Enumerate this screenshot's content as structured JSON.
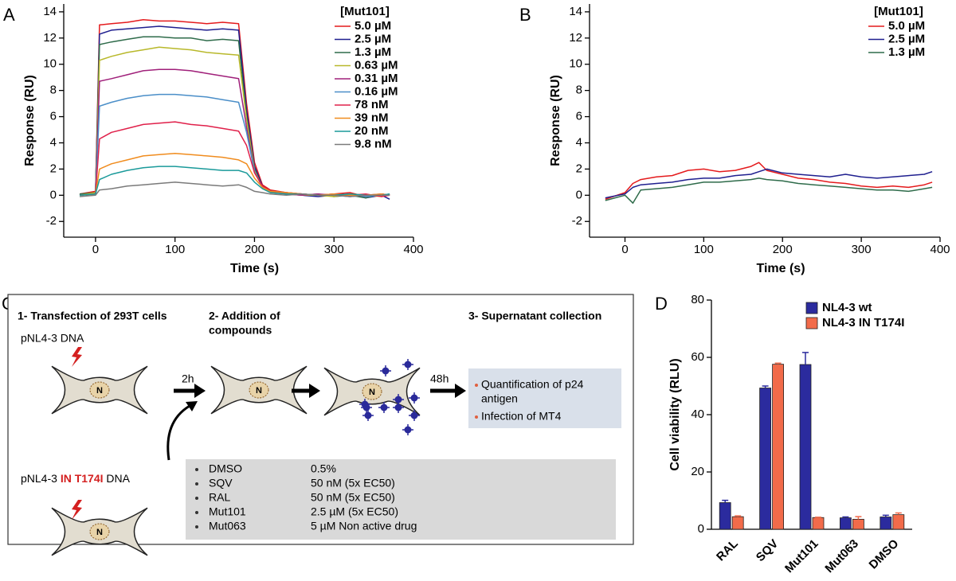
{
  "panel_labels": [
    "A",
    "B",
    "C",
    "D"
  ],
  "chart_data": [
    {
      "type": "line",
      "xlabel": "Time (s)",
      "ylabel": "Response (RU)",
      "legend_title": "[Mut101]",
      "xlim": [
        -40,
        400
      ],
      "xticks": [
        0,
        100,
        200,
        300,
        400
      ],
      "ylim": [
        -3.2,
        14.6
      ],
      "yticks": [
        -2,
        0,
        2,
        4,
        6,
        8,
        10,
        12,
        14
      ],
      "x": [
        -20,
        0,
        5,
        20,
        40,
        60,
        80,
        100,
        120,
        140,
        160,
        180,
        190,
        200,
        210,
        220,
        240,
        260,
        280,
        300,
        320,
        340,
        360,
        370
      ],
      "series": [
        {
          "name": "5.0 µM",
          "color": "#e41a1c",
          "values": [
            0.1,
            0.3,
            13.0,
            13.1,
            13.2,
            13.4,
            13.3,
            13.3,
            13.2,
            13.1,
            13.2,
            13.1,
            7.0,
            2.5,
            0.8,
            0.4,
            0.2,
            0.1,
            0.0,
            0.1,
            0.2,
            -0.1,
            0.1,
            0.0
          ]
        },
        {
          "name": "2.5 µM",
          "color": "#1f1f8f",
          "values": [
            0.0,
            0.2,
            12.3,
            12.6,
            12.7,
            12.8,
            12.9,
            12.8,
            12.7,
            12.6,
            12.7,
            12.6,
            6.5,
            2.2,
            0.7,
            0.3,
            0.1,
            0.0,
            -0.1,
            0.0,
            0.1,
            -0.2,
            0.0,
            -0.3
          ]
        },
        {
          "name": "1.3 µM",
          "color": "#2e6b4a",
          "values": [
            0.1,
            0.2,
            11.5,
            11.7,
            11.9,
            12.1,
            12.1,
            12.0,
            12.0,
            11.8,
            11.9,
            11.8,
            6.0,
            2.0,
            0.6,
            0.3,
            0.2,
            0.0,
            0.1,
            -0.1,
            0.0,
            -0.2,
            0.1,
            0.0
          ]
        },
        {
          "name": "0.63 µM",
          "color": "#b8b82a",
          "values": [
            0.0,
            0.2,
            10.3,
            10.6,
            10.9,
            11.1,
            11.3,
            11.2,
            11.1,
            10.9,
            10.8,
            10.7,
            5.8,
            1.9,
            0.6,
            0.2,
            0.1,
            0.0,
            0.0,
            -0.1,
            0.1,
            0.0,
            -0.1,
            0.1
          ]
        },
        {
          "name": "0.31 µM",
          "color": "#a0207a",
          "values": [
            0.0,
            0.1,
            8.7,
            8.9,
            9.2,
            9.5,
            9.6,
            9.6,
            9.5,
            9.3,
            9.1,
            8.9,
            5.2,
            1.8,
            0.6,
            0.3,
            0.1,
            0.0,
            0.1,
            0.0,
            -0.1,
            0.0,
            0.1,
            0.0
          ]
        },
        {
          "name": "0.16 µM",
          "color": "#4a8ec8",
          "values": [
            0.0,
            0.1,
            6.8,
            7.1,
            7.4,
            7.6,
            7.7,
            7.7,
            7.6,
            7.5,
            7.3,
            7.1,
            4.8,
            1.8,
            0.6,
            0.3,
            0.2,
            0.1,
            0.0,
            0.0,
            0.1,
            -0.1,
            0.0,
            0.1
          ]
        },
        {
          "name": "78 nM",
          "color": "#e0204a",
          "values": [
            0.0,
            0.1,
            4.3,
            4.8,
            5.1,
            5.4,
            5.5,
            5.6,
            5.4,
            5.3,
            5.1,
            4.9,
            3.8,
            1.7,
            0.7,
            0.3,
            0.2,
            0.1,
            0.0,
            0.1,
            0.0,
            0.1,
            -0.1,
            0.0
          ]
        },
        {
          "name": "39 nM",
          "color": "#f08c1e",
          "values": [
            0.0,
            0.1,
            2.0,
            2.4,
            2.7,
            3.0,
            3.1,
            3.2,
            3.1,
            3.0,
            2.9,
            2.7,
            2.4,
            1.3,
            0.6,
            0.3,
            0.2,
            0.1,
            0.0,
            0.1,
            0.0,
            0.0,
            0.1,
            0.0
          ]
        },
        {
          "name": "20 nM",
          "color": "#1a9a9a",
          "values": [
            0.0,
            0.1,
            1.2,
            1.6,
            1.9,
            2.1,
            2.2,
            2.2,
            2.1,
            2.0,
            1.9,
            1.9,
            1.7,
            1.0,
            0.5,
            0.2,
            0.1,
            0.1,
            0.0,
            0.0,
            0.1,
            0.0,
            0.0,
            0.1
          ]
        },
        {
          "name": "9.8 nM",
          "color": "#7a7a7a",
          "values": [
            -0.1,
            0.0,
            0.4,
            0.5,
            0.7,
            0.8,
            0.9,
            1.0,
            0.9,
            0.8,
            0.7,
            0.8,
            0.6,
            0.3,
            0.2,
            0.1,
            0.0,
            0.1,
            0.0,
            0.0,
            -0.1,
            0.0,
            0.0,
            0.0
          ]
        }
      ]
    },
    {
      "type": "line",
      "xlabel": "Time (s)",
      "ylabel": "Response (RU)",
      "legend_title": "[Mut101]",
      "xlim": [
        -45,
        400
      ],
      "xticks": [
        0,
        100,
        200,
        300,
        400
      ],
      "ylim": [
        -3.2,
        14.6
      ],
      "yticks": [
        -2,
        0,
        2,
        4,
        6,
        8,
        10,
        12,
        14
      ],
      "x": [
        -25,
        0,
        10,
        20,
        40,
        60,
        80,
        100,
        120,
        140,
        160,
        170,
        180,
        200,
        220,
        240,
        260,
        280,
        300,
        320,
        340,
        360,
        380,
        390
      ],
      "series": [
        {
          "name": "5.0 µM",
          "color": "#e41a1c",
          "values": [
            -0.3,
            0.2,
            0.9,
            1.2,
            1.4,
            1.5,
            1.9,
            2.0,
            1.8,
            1.9,
            2.2,
            2.5,
            1.9,
            1.6,
            1.3,
            1.2,
            1.0,
            0.9,
            0.7,
            0.6,
            0.7,
            0.6,
            0.8,
            1.0
          ]
        },
        {
          "name": "2.5 µM",
          "color": "#1f1f8f",
          "values": [
            -0.2,
            0.1,
            0.6,
            0.8,
            0.9,
            1.0,
            1.2,
            1.3,
            1.3,
            1.5,
            1.6,
            1.8,
            2.0,
            1.7,
            1.6,
            1.5,
            1.4,
            1.6,
            1.4,
            1.3,
            1.4,
            1.5,
            1.6,
            1.8
          ]
        },
        {
          "name": "1.3 µM",
          "color": "#2e6b4a",
          "values": [
            -0.4,
            0.0,
            -0.6,
            0.4,
            0.5,
            0.6,
            0.8,
            1.0,
            1.0,
            1.1,
            1.2,
            1.3,
            1.2,
            1.1,
            0.9,
            0.8,
            0.7,
            0.6,
            0.5,
            0.4,
            0.4,
            0.3,
            0.5,
            0.6
          ]
        }
      ]
    },
    {
      "type": "bar",
      "ylabel": "Cell viability (RLU)",
      "categories": [
        "RAL",
        "SQV",
        "Mut101",
        "Mut063",
        "DMSO"
      ],
      "ylim": [
        0,
        80
      ],
      "yticks": [
        0,
        20,
        40,
        60,
        80
      ],
      "series": [
        {
          "name": "NL4-3 wt",
          "color": "#2b2b9e",
          "values": [
            9.3,
            49.3,
            57.5,
            4.0,
            4.3
          ],
          "errors": [
            0.8,
            0.7,
            4.2,
            0.3,
            0.6
          ]
        },
        {
          "name": "NL4-3 IN T174I",
          "color": "#f26b4a",
          "values": [
            4.4,
            57.6,
            4.1,
            3.5,
            5.1
          ],
          "errors": [
            0.3,
            0.4,
            0.1,
            0.9,
            0.6
          ]
        }
      ]
    }
  ],
  "diagram": {
    "step1": "1- Transfection of 293T cells",
    "step2": [
      "2- Addition of",
      "compounds"
    ],
    "step3": "3- Supernatant collection",
    "dna1": "pNL4-3 DNA",
    "dna2": [
      "pNL4-3 ",
      "IN T174I",
      " DNA"
    ],
    "nucleus": "N",
    "time1": "2h",
    "time2": "48h",
    "outputs": [
      [
        "Quantification  of  p24",
        "antigen"
      ],
      [
        "Infection of MT4"
      ]
    ],
    "compounds": [
      [
        "DMSO",
        "0.5%"
      ],
      [
        "SQV",
        "50 nM (5x EC50)"
      ],
      [
        "RAL",
        "50 nM (5x EC50)"
      ],
      [
        "Mut101",
        "2.5 µM (5x EC50)"
      ],
      [
        "Mut063",
        "5 µM  Non active drug"
      ]
    ]
  }
}
